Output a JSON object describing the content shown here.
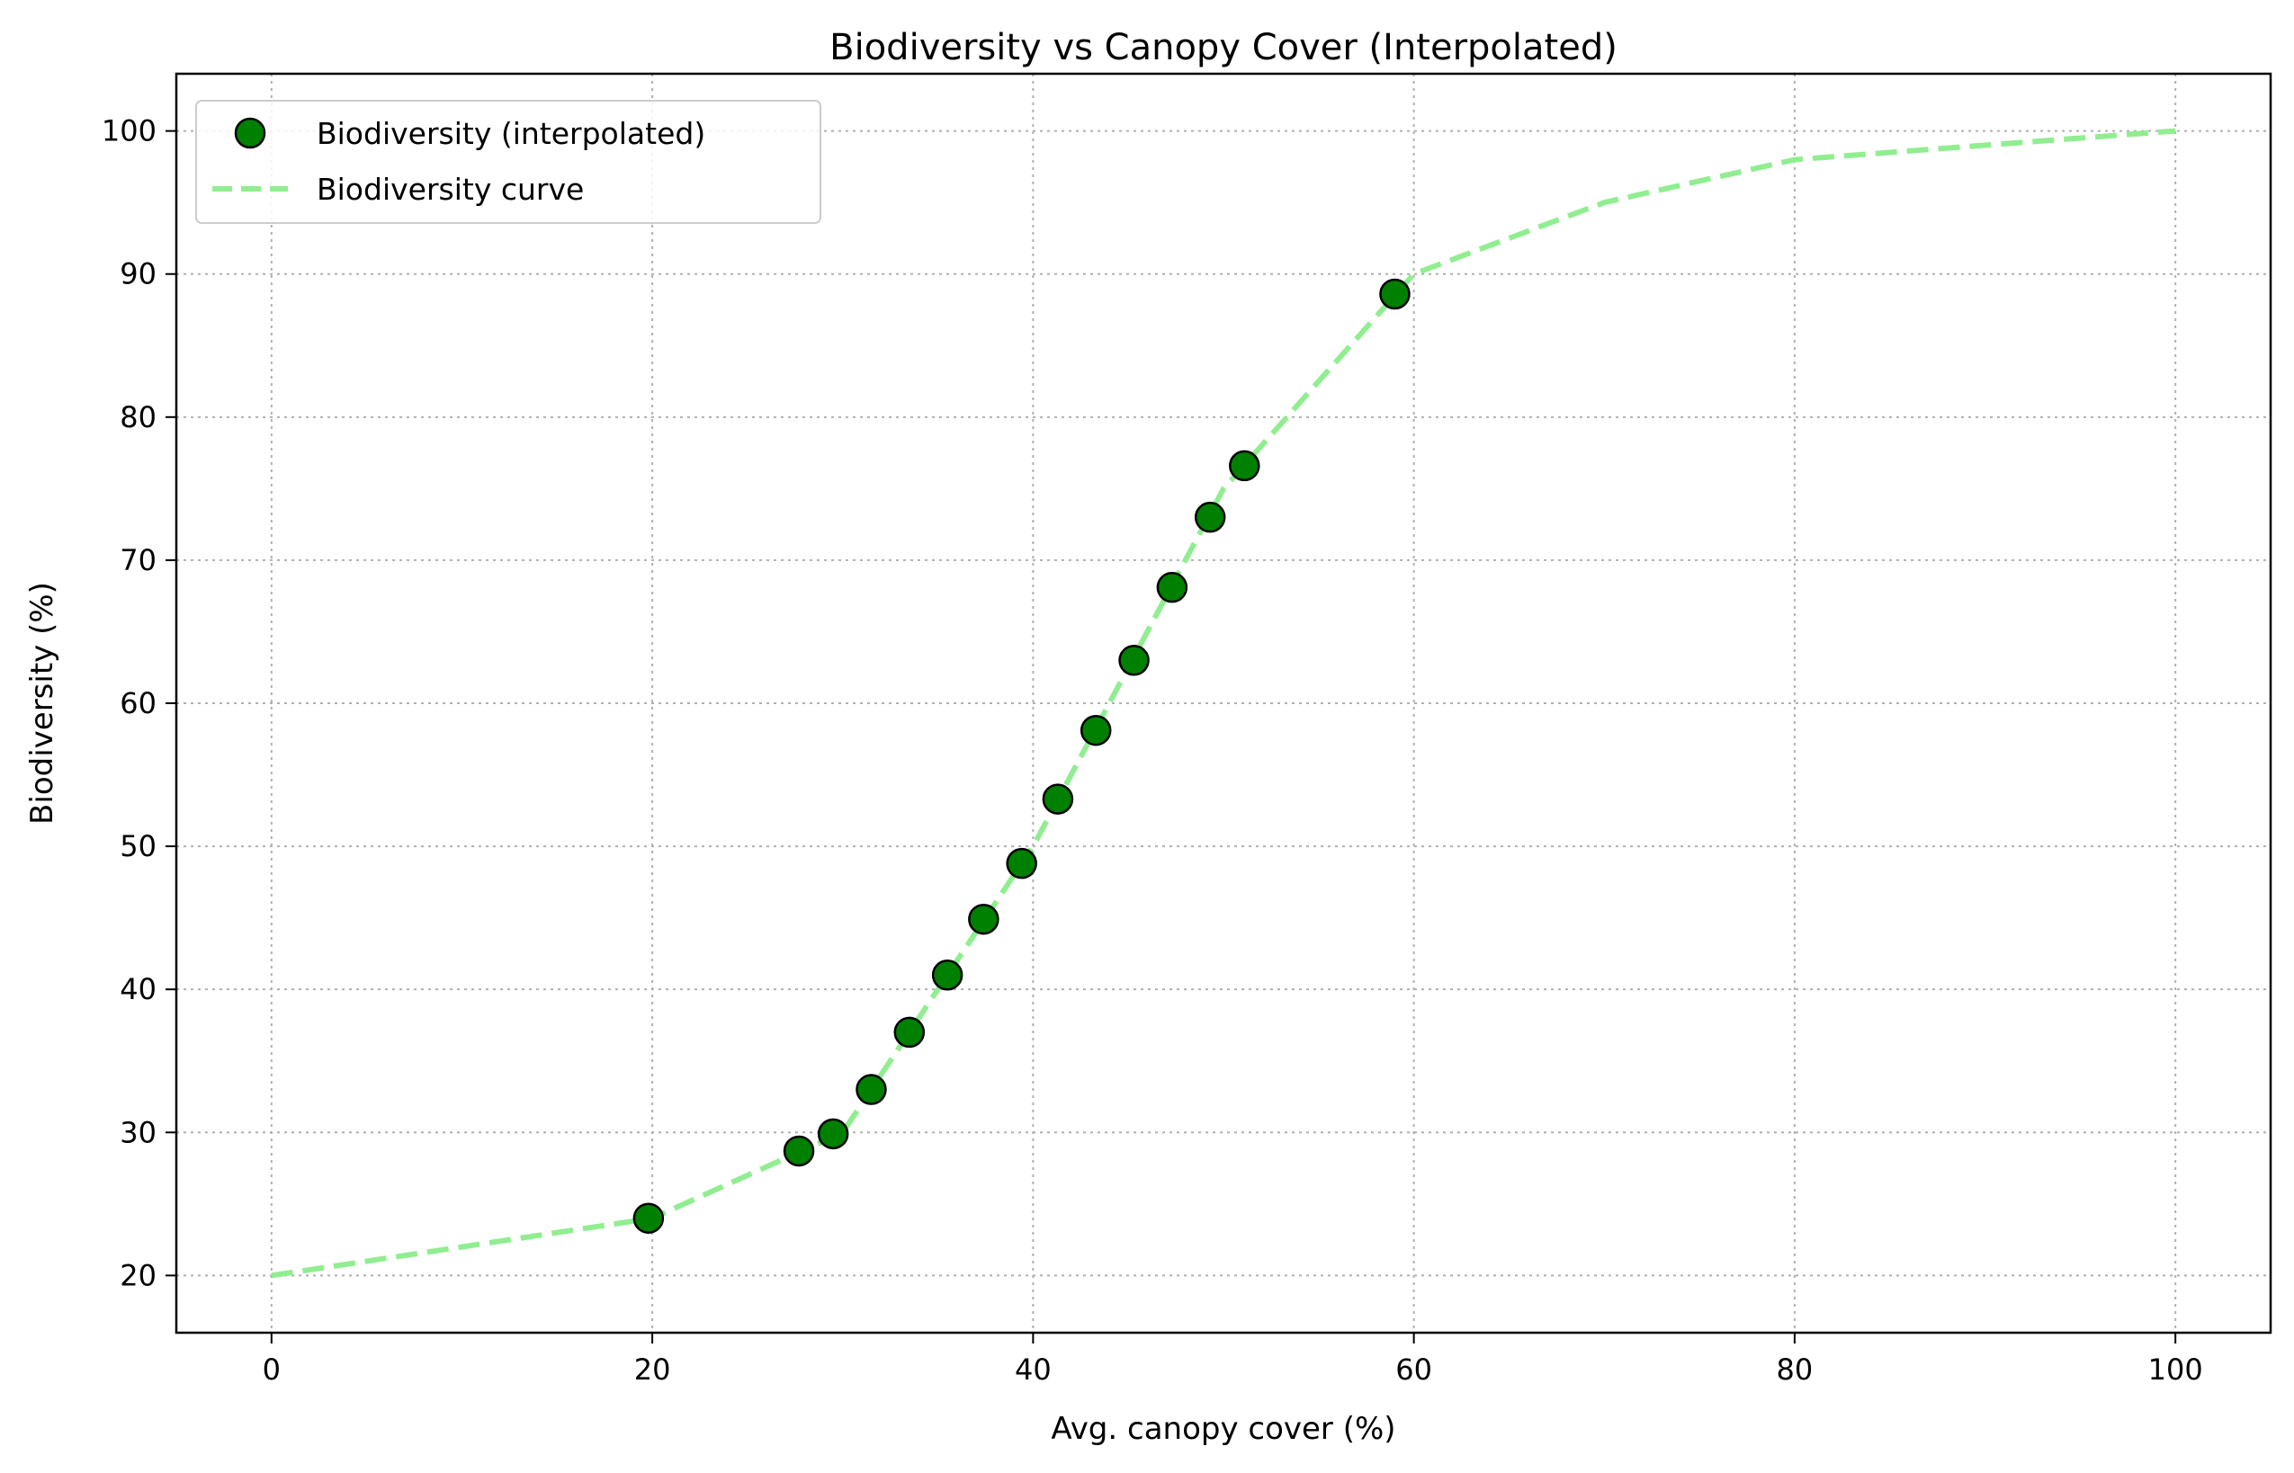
{
  "chart_data": {
    "type": "line",
    "title": "Biodiversity vs Canopy Cover (Interpolated)",
    "xlabel": "Avg. canopy cover (%)",
    "ylabel": "Biodiversity (%)",
    "xlim": [
      -5,
      105
    ],
    "ylim": [
      16,
      104
    ],
    "x_ticks": [
      0,
      20,
      40,
      60,
      80,
      100
    ],
    "y_ticks": [
      20,
      30,
      40,
      50,
      60,
      70,
      80,
      90,
      100
    ],
    "grid": true,
    "legend_position": "top-left",
    "series": [
      {
        "name": "Biodiversity (interpolated)",
        "kind": "scatter",
        "color": "#008000",
        "edge_color": "#000000",
        "points": [
          {
            "x": 19.8,
            "y": 24.0
          },
          {
            "x": 27.7,
            "y": 28.7
          },
          {
            "x": 29.5,
            "y": 29.9
          },
          {
            "x": 31.5,
            "y": 33.0
          },
          {
            "x": 33.5,
            "y": 37.0
          },
          {
            "x": 35.5,
            "y": 41.0
          },
          {
            "x": 37.4,
            "y": 44.9
          },
          {
            "x": 39.4,
            "y": 48.8
          },
          {
            "x": 41.3,
            "y": 53.3
          },
          {
            "x": 43.3,
            "y": 58.1
          },
          {
            "x": 45.3,
            "y": 63.0
          },
          {
            "x": 47.3,
            "y": 68.1
          },
          {
            "x": 49.3,
            "y": 73.0
          },
          {
            "x": 51.1,
            "y": 76.6
          },
          {
            "x": 59.0,
            "y": 88.6
          }
        ]
      },
      {
        "name": "Biodiversity curve",
        "kind": "line",
        "style": "dashed",
        "color": "#90ee90",
        "points": [
          {
            "x": 0,
            "y": 20
          },
          {
            "x": 20,
            "y": 24
          },
          {
            "x": 30,
            "y": 30
          },
          {
            "x": 40,
            "y": 50
          },
          {
            "x": 50,
            "y": 75
          },
          {
            "x": 60,
            "y": 90
          },
          {
            "x": 70,
            "y": 95
          },
          {
            "x": 80,
            "y": 98
          },
          {
            "x": 90,
            "y": 99
          },
          {
            "x": 100,
            "y": 100
          }
        ]
      }
    ]
  }
}
